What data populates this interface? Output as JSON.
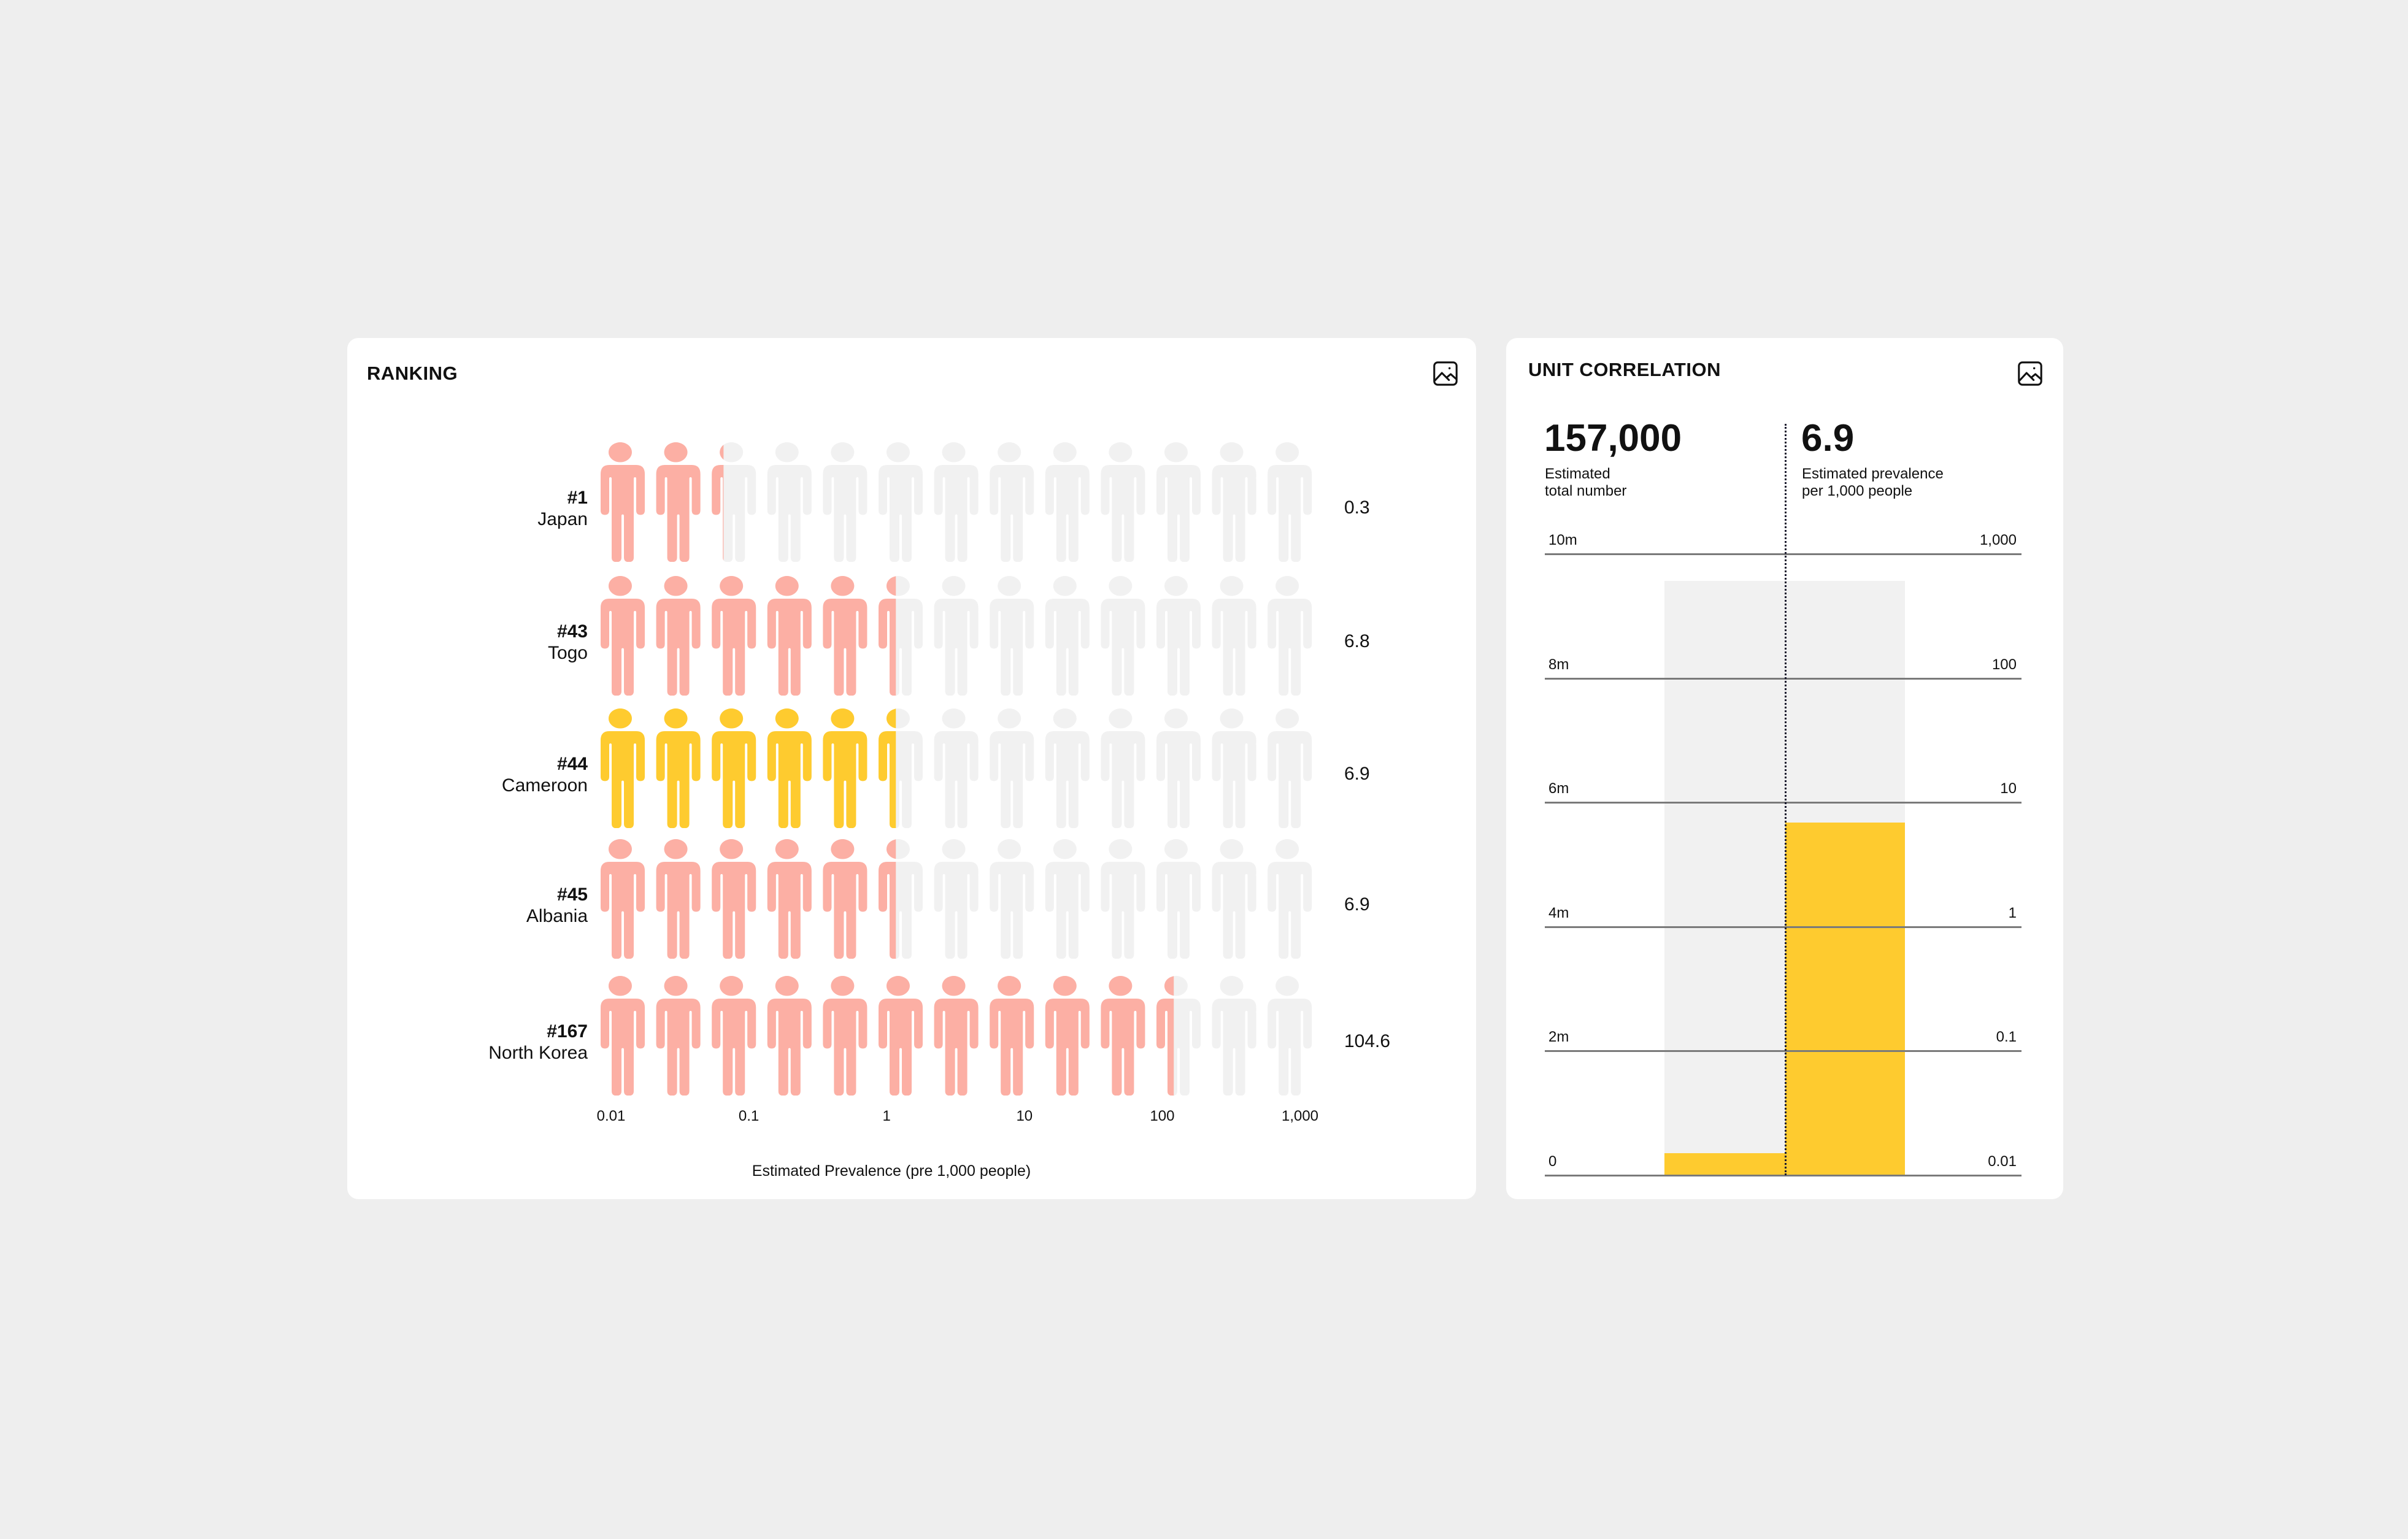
{
  "colors": {
    "highlight": "#fecb2f",
    "pink": "#fcafa4",
    "empty": "#f1f1f1",
    "grid": "#7a7a7a"
  },
  "ranking": {
    "title": "RANKING",
    "icon": "image-icon",
    "axis_title": "Estimated Prevalence (pre 1,000 people)",
    "ticks": [
      "0.01",
      "0.1",
      "1",
      "10",
      "100",
      "1,000"
    ]
  },
  "unit": {
    "title": "UNIT CORRELATION",
    "icon": "image-icon",
    "total_value": "157,000",
    "total_label_1": "Estimated",
    "total_label_2": "total number",
    "prev_value": "6.9",
    "prev_label_1": "Estimated prevalence",
    "prev_label_2": "per 1,000 people",
    "left_ticks": [
      "10m",
      "8m",
      "6m",
      "4m",
      "2m",
      "0"
    ],
    "right_ticks": [
      "1,000",
      "100",
      "10",
      "1",
      "0.1",
      "0.01"
    ]
  },
  "chart_data": [
    {
      "type": "bar",
      "title": "RANKING",
      "xlabel": "Estimated Prevalence (pre 1,000 people)",
      "x_scale": "log",
      "xlim": [
        0.01,
        1000
      ],
      "tick_labels": [
        "0.01",
        "0.1",
        "1",
        "10",
        "100",
        "1,000"
      ],
      "figures_per_row": 13,
      "categories": [
        "Japan",
        "Togo",
        "Cameroon",
        "Albania",
        "North Korea"
      ],
      "rows": [
        {
          "rank": "#1",
          "country": "Japan",
          "value": 0.3,
          "value_label": "0.3",
          "filled_figures": 2.3,
          "highlight": false
        },
        {
          "rank": "#43",
          "country": "Togo",
          "value": 6.8,
          "value_label": "6.8",
          "filled_figures": 5.4,
          "highlight": false
        },
        {
          "rank": "#44",
          "country": "Cameroon",
          "value": 6.9,
          "value_label": "6.9",
          "filled_figures": 5.4,
          "highlight": true
        },
        {
          "rank": "#45",
          "country": "Albania",
          "value": 6.9,
          "value_label": "6.9",
          "filled_figures": 5.4,
          "highlight": false
        },
        {
          "rank": "#167",
          "country": "North Korea",
          "value": 104.6,
          "value_label": "104.6",
          "filled_figures": 10.4,
          "highlight": false
        }
      ]
    },
    {
      "type": "bar",
      "title": "UNIT CORRELATION",
      "left_axis": {
        "label": "Estimated total number",
        "range": [
          0,
          10000000
        ],
        "ticks": [
          "0",
          "2m",
          "4m",
          "6m",
          "8m",
          "10m"
        ]
      },
      "right_axis": {
        "label": "Estimated prevalence per 1,000 people",
        "scale": "log",
        "range": [
          0.01,
          1000
        ],
        "ticks": [
          "0.01",
          "0.1",
          "1",
          "10",
          "100",
          "1,000"
        ]
      },
      "series": [
        {
          "name": "Estimated total number",
          "value": 157000,
          "axis": "left"
        },
        {
          "name": "Estimated prevalence per 1,000 people",
          "value": 6.9,
          "axis": "right"
        }
      ]
    }
  ]
}
